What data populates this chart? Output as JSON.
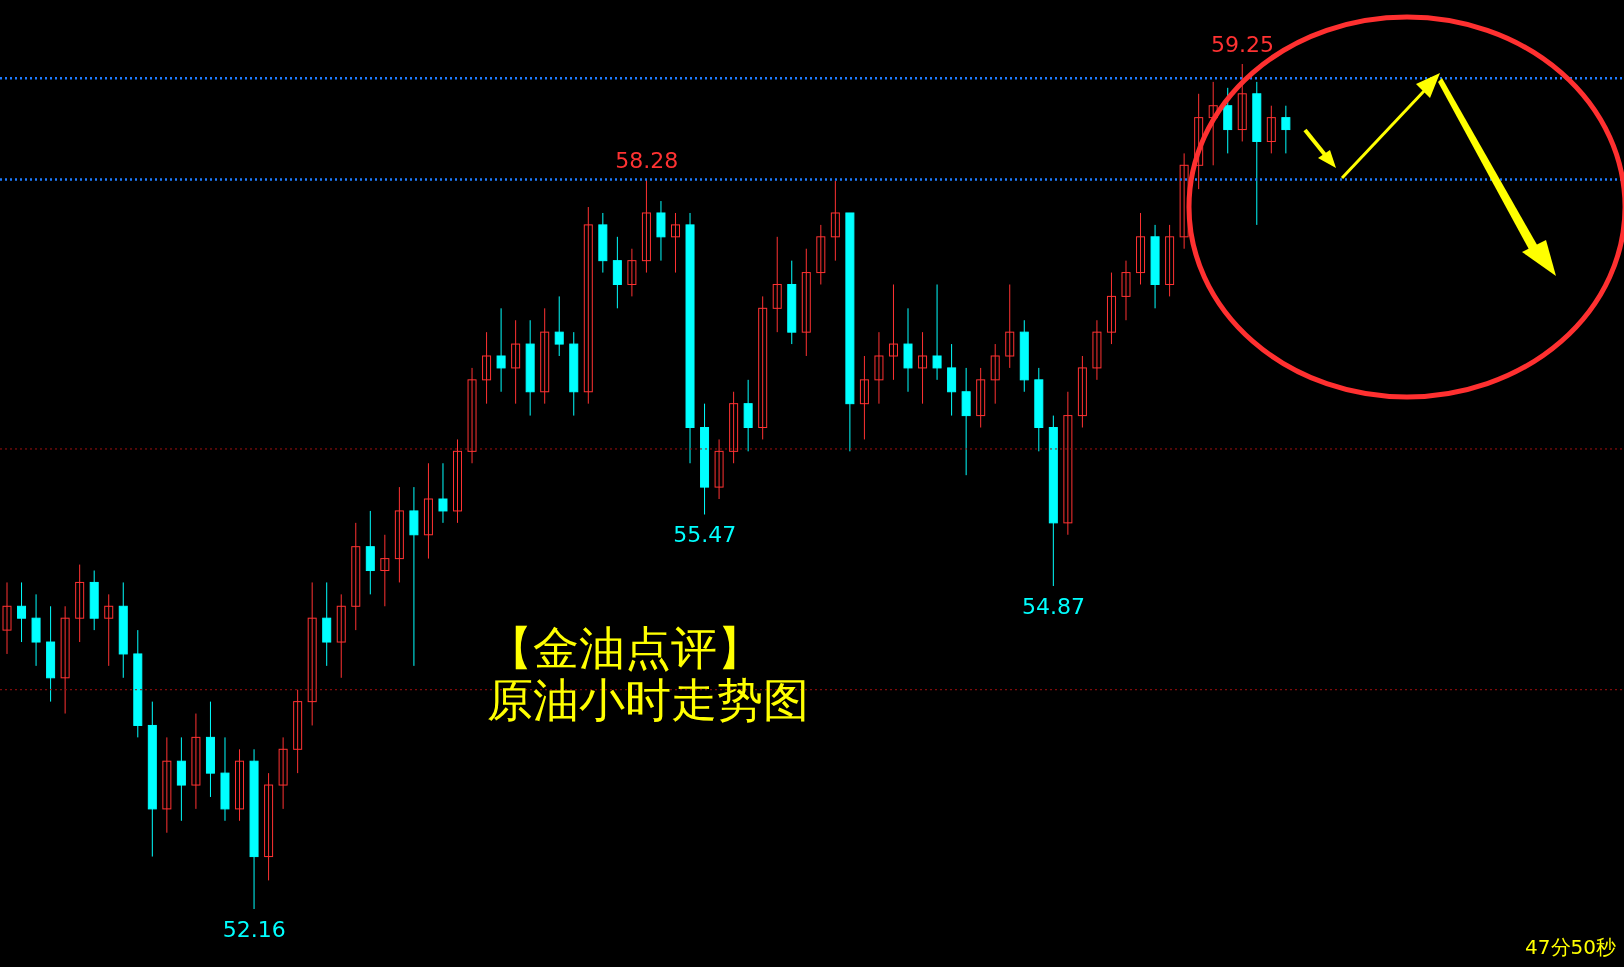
{
  "chart_data": {
    "type": "candlestick",
    "title": "【金油点评】",
    "subtitle": "原油小时走势图",
    "annotations": [
      {
        "text": "52.16",
        "y": 52.16
      },
      {
        "text": "58.28",
        "y": 58.28
      },
      {
        "text": "55.47",
        "y": 55.47
      },
      {
        "text": "54.87",
        "y": 54.87
      },
      {
        "text": "59.25",
        "y": 59.25
      },
      "47分50秒"
    ],
    "categories": [
      null,
      null,
      null,
      null,
      null,
      null,
      null,
      null,
      null,
      null,
      null,
      null,
      null,
      null,
      null,
      null,
      null,
      null,
      null,
      null,
      null,
      null,
      null,
      null,
      null,
      null,
      null,
      null,
      null,
      null,
      null,
      null,
      null,
      null,
      null,
      null,
      null,
      null,
      null,
      null,
      null,
      null,
      null,
      null,
      null,
      null,
      null,
      null,
      null,
      null,
      null,
      null,
      null,
      null,
      null,
      null,
      null,
      null,
      null,
      null,
      null,
      null,
      null,
      null,
      null,
      null,
      null,
      null,
      null,
      null,
      null,
      null,
      null,
      null,
      null,
      null,
      null,
      null,
      null,
      null,
      null,
      null,
      null,
      null,
      null,
      null,
      null,
      null,
      null
    ],
    "ohlc": [
      [
        54.5,
        54.9,
        54.3,
        54.7
      ],
      [
        54.7,
        54.9,
        54.4,
        54.6
      ],
      [
        54.6,
        54.8,
        54.2,
        54.4
      ],
      [
        54.4,
        54.7,
        53.9,
        54.1
      ],
      [
        54.1,
        54.7,
        53.8,
        54.6
      ],
      [
        54.6,
        55.05,
        54.4,
        54.9
      ],
      [
        54.9,
        55.0,
        54.5,
        54.6
      ],
      [
        54.6,
        54.8,
        54.2,
        54.7
      ],
      [
        54.7,
        54.9,
        54.1,
        54.3
      ],
      [
        54.3,
        54.5,
        53.6,
        53.7
      ],
      [
        53.7,
        53.9,
        52.6,
        53.0
      ],
      [
        53.0,
        53.6,
        52.8,
        53.4
      ],
      [
        53.4,
        53.6,
        52.9,
        53.2
      ],
      [
        53.2,
        53.8,
        53.0,
        53.6
      ],
      [
        53.6,
        53.9,
        53.1,
        53.3
      ],
      [
        53.3,
        53.6,
        52.9,
        53.0
      ],
      [
        53.0,
        53.5,
        52.9,
        53.4
      ],
      [
        53.4,
        53.5,
        52.16,
        52.6
      ],
      [
        52.6,
        53.3,
        52.4,
        53.2
      ],
      [
        53.2,
        53.6,
        53.0,
        53.5
      ],
      [
        53.5,
        54.0,
        53.3,
        53.9
      ],
      [
        53.9,
        54.9,
        53.7,
        54.6
      ],
      [
        54.6,
        54.9,
        54.2,
        54.4
      ],
      [
        54.4,
        54.8,
        54.1,
        54.7
      ],
      [
        54.7,
        55.4,
        54.5,
        55.2
      ],
      [
        55.2,
        55.5,
        54.8,
        55.0
      ],
      [
        55.0,
        55.3,
        54.7,
        55.1
      ],
      [
        55.1,
        55.7,
        54.9,
        55.5
      ],
      [
        55.5,
        55.7,
        54.2,
        55.3
      ],
      [
        55.3,
        55.9,
        55.1,
        55.6
      ],
      [
        55.6,
        55.9,
        55.4,
        55.5
      ],
      [
        55.5,
        56.1,
        55.4,
        56.0
      ],
      [
        56.0,
        56.7,
        55.9,
        56.6
      ],
      [
        56.6,
        57.0,
        56.4,
        56.8
      ],
      [
        56.8,
        57.2,
        56.5,
        56.7
      ],
      [
        56.7,
        57.1,
        56.4,
        56.9
      ],
      [
        56.9,
        57.1,
        56.3,
        56.5
      ],
      [
        56.5,
        57.2,
        56.4,
        57.0
      ],
      [
        57.0,
        57.3,
        56.8,
        56.9
      ],
      [
        56.9,
        57.0,
        56.3,
        56.5
      ],
      [
        56.5,
        58.05,
        56.4,
        57.9
      ],
      [
        57.9,
        58.0,
        57.5,
        57.6
      ],
      [
        57.6,
        57.8,
        57.2,
        57.4
      ],
      [
        57.4,
        57.7,
        57.3,
        57.6
      ],
      [
        57.6,
        58.28,
        57.5,
        58.0
      ],
      [
        58.0,
        58.1,
        57.6,
        57.8
      ],
      [
        57.8,
        58.0,
        57.5,
        57.9
      ],
      [
        57.9,
        58.0,
        55.9,
        56.2
      ],
      [
        56.2,
        56.4,
        55.47,
        55.7
      ],
      [
        55.7,
        56.1,
        55.6,
        56.0
      ],
      [
        56.0,
        56.5,
        55.9,
        56.4
      ],
      [
        56.4,
        56.6,
        56.0,
        56.2
      ],
      [
        56.2,
        57.3,
        56.1,
        57.2
      ],
      [
        57.2,
        57.8,
        57.0,
        57.4
      ],
      [
        57.4,
        57.6,
        56.9,
        57.0
      ],
      [
        57.0,
        57.7,
        56.8,
        57.5
      ],
      [
        57.5,
        57.9,
        57.4,
        57.8
      ],
      [
        57.8,
        58.27,
        57.6,
        58.0
      ],
      [
        58.0,
        58.0,
        56.0,
        56.4
      ],
      [
        56.4,
        56.8,
        56.1,
        56.6
      ],
      [
        56.6,
        57.0,
        56.4,
        56.8
      ],
      [
        56.8,
        57.4,
        56.6,
        56.9
      ],
      [
        56.9,
        57.2,
        56.5,
        56.7
      ],
      [
        56.7,
        57.0,
        56.4,
        56.8
      ],
      [
        56.8,
        57.4,
        56.6,
        56.7
      ],
      [
        56.7,
        56.9,
        56.3,
        56.5
      ],
      [
        56.5,
        56.7,
        55.8,
        56.3
      ],
      [
        56.3,
        56.7,
        56.2,
        56.6
      ],
      [
        56.6,
        56.9,
        56.4,
        56.8
      ],
      [
        56.8,
        57.4,
        56.7,
        57.0
      ],
      [
        57.0,
        57.1,
        56.5,
        56.6
      ],
      [
        56.6,
        56.7,
        56.0,
        56.2
      ],
      [
        56.2,
        56.3,
        54.87,
        55.4
      ],
      [
        55.4,
        56.5,
        55.3,
        56.3
      ],
      [
        56.3,
        56.8,
        56.2,
        56.7
      ],
      [
        56.7,
        57.1,
        56.6,
        57.0
      ],
      [
        57.0,
        57.5,
        56.9,
        57.3
      ],
      [
        57.3,
        57.6,
        57.1,
        57.5
      ],
      [
        57.5,
        58.0,
        57.4,
        57.8
      ],
      [
        57.8,
        57.9,
        57.2,
        57.4
      ],
      [
        57.4,
        57.9,
        57.3,
        57.8
      ],
      [
        57.8,
        58.5,
        57.7,
        58.4
      ],
      [
        58.4,
        59.0,
        58.2,
        58.8
      ],
      [
        58.8,
        59.1,
        58.4,
        58.9
      ],
      [
        58.9,
        59.05,
        58.5,
        58.7
      ],
      [
        58.7,
        59.25,
        58.6,
        59.0
      ],
      [
        59.0,
        59.1,
        57.9,
        58.6
      ],
      [
        58.6,
        58.9,
        58.5,
        58.8
      ],
      [
        58.8,
        58.9,
        58.5,
        58.7
      ]
    ],
    "colors": [
      "#ff3232",
      "#00ffff",
      "#00ffff",
      "#00ffff",
      "#ff3232",
      "#ff3232",
      "#00ffff",
      "#ff3232",
      "#00ffff",
      "#00ffff",
      "#00ffff",
      "#ff3232",
      "#00ffff",
      "#ff3232",
      "#00ffff",
      "#00ffff",
      "#ff3232",
      "#00ffff",
      "#ff3232",
      "#ff3232",
      "#ff3232",
      "#ff3232",
      "#00ffff",
      "#ff3232",
      "#ff3232",
      "#00ffff",
      "#ff3232",
      "#ff3232",
      "#00ffff",
      "#ff3232",
      "#00ffff",
      "#ff3232",
      "#ff3232",
      "#ff3232",
      "#00ffff",
      "#ff3232",
      "#00ffff",
      "#ff3232",
      "#00ffff",
      "#00ffff",
      "#ff3232",
      "#00ffff",
      "#00ffff",
      "#ff3232",
      "#ff3232",
      "#00ffff",
      "#ff3232",
      "#00ffff",
      "#00ffff",
      "#ff3232",
      "#ff3232",
      "#00ffff",
      "#ff3232",
      "#ff3232",
      "#00ffff",
      "#ff3232",
      "#ff3232",
      "#ff3232",
      "#00ffff",
      "#ff3232",
      "#ff3232",
      "#ff3232",
      "#00ffff",
      "#ff3232",
      "#00ffff",
      "#00ffff",
      "#00ffff",
      "#ff3232",
      "#ff3232",
      "#ff3232",
      "#00ffff",
      "#00ffff",
      "#00ffff",
      "#ff3232",
      "#ff3232",
      "#ff3232",
      "#ff3232",
      "#ff3232",
      "#ff3232",
      "#00ffff",
      "#ff3232",
      "#ff3232",
      "#ff3232",
      "#ff3232",
      "#00ffff",
      "#ff3232",
      "#00ffff",
      "#ff3232",
      "#00ffff"
    ],
    "ref_lines": [
      {
        "axis": "y",
        "value": 58.28,
        "color": "#1e7bff",
        "line_style": "dotted"
      },
      {
        "axis": "y",
        "value": 59.13,
        "color": "#1e7bff",
        "line_style": "dotted"
      },
      {
        "axis": "y",
        "value": 56.02,
        "color": "#a01010",
        "line_style": "dotted"
      },
      {
        "axis": "y",
        "value": 54.0,
        "color": "#a01010",
        "line_style": "dotted"
      }
    ]
  }
}
